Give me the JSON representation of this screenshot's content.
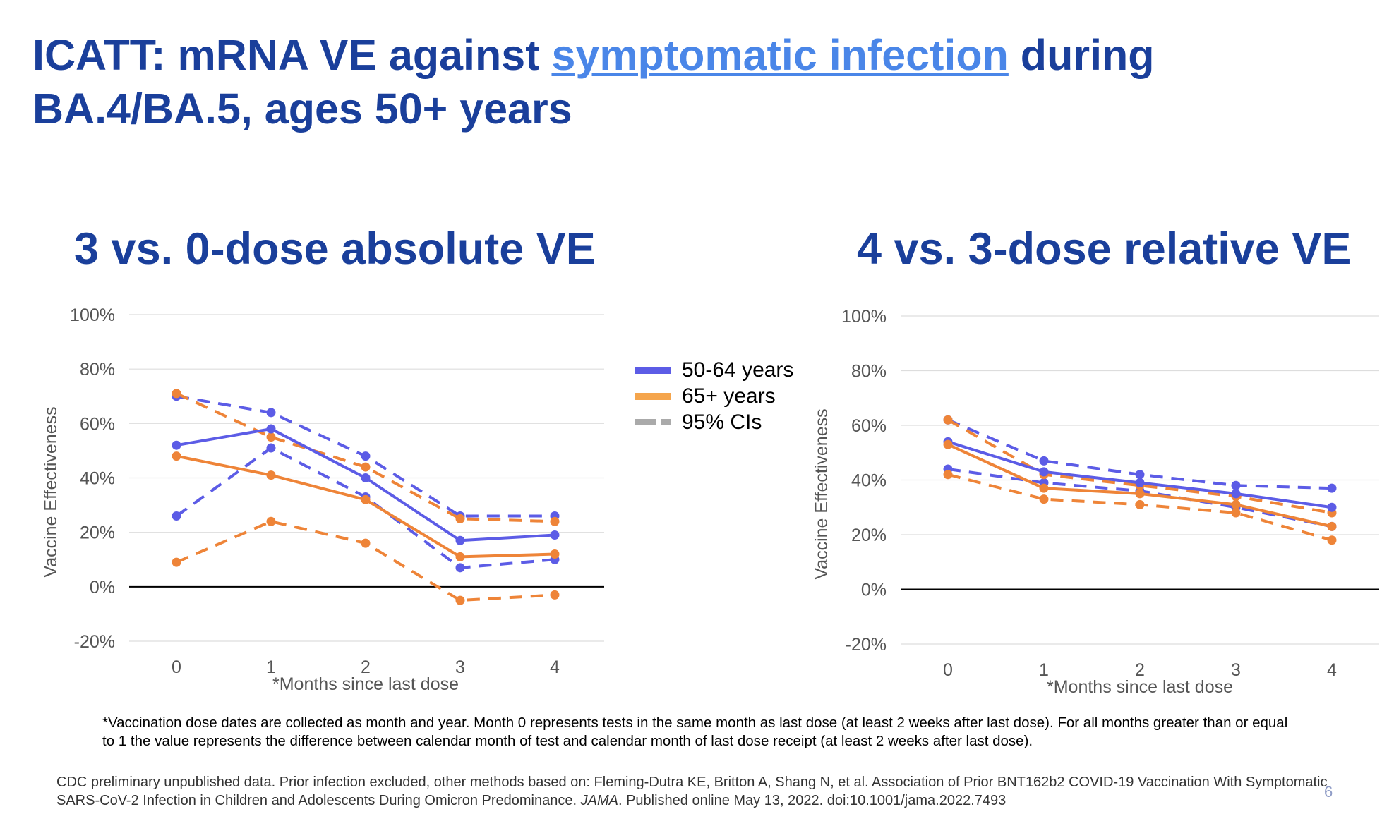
{
  "title": {
    "part1": "ICATT: mRNA VE against ",
    "link": "symptomatic infection",
    "part2": " during BA.4/BA.5, ages 50+ years"
  },
  "legend": {
    "items": [
      {
        "label": "50-64 years",
        "color": "#5c5ce6",
        "style": "solid"
      },
      {
        "label": "65+ years",
        "color": "#f5a54c",
        "style": "solid"
      },
      {
        "label": "95% CIs",
        "color": "#aaaaaa",
        "style": "dashed"
      }
    ]
  },
  "colors": {
    "series_50_64": "#5c5ce6",
    "series_65plus": "#ee8438",
    "title": "#1a3f9b"
  },
  "chart_data": [
    {
      "type": "line",
      "title": "3 vs. 0-dose absolute VE",
      "xlabel": "*Months since last dose",
      "ylabel": "Vaccine Effectiveness",
      "x": [
        0,
        1,
        2,
        3,
        4
      ],
      "yticks": [
        "100%",
        "80%",
        "60%",
        "40%",
        "20%",
        "0%",
        "-20%"
      ],
      "ylim": [
        -20,
        100
      ],
      "series": [
        {
          "name": "50-64 years",
          "values": [
            52,
            58,
            40,
            17,
            19
          ]
        },
        {
          "name": "50-64 years upper 95% CI",
          "values": [
            70,
            64,
            48,
            26,
            26
          ]
        },
        {
          "name": "50-64 years lower 95% CI",
          "values": [
            26,
            51,
            33,
            7,
            10
          ]
        },
        {
          "name": "65+ years",
          "values": [
            48,
            41,
            32,
            11,
            12
          ]
        },
        {
          "name": "65+ years upper 95% CI",
          "values": [
            71,
            55,
            44,
            25,
            24
          ]
        },
        {
          "name": "65+ years lower 95% CI",
          "values": [
            9,
            24,
            16,
            -5,
            -3
          ]
        }
      ]
    },
    {
      "type": "line",
      "title": "4 vs. 3-dose relative VE",
      "xlabel": "*Months since last dose",
      "ylabel": "Vaccine Effectiveness",
      "x": [
        0,
        1,
        2,
        3,
        4
      ],
      "yticks": [
        "100%",
        "80%",
        "60%",
        "40%",
        "20%",
        "0%",
        "-20%"
      ],
      "ylim": [
        -20,
        100
      ],
      "series": [
        {
          "name": "50-64 years",
          "values": [
            54,
            43,
            39,
            35,
            30
          ]
        },
        {
          "name": "50-64 years upper 95% CI",
          "values": [
            62,
            47,
            42,
            38,
            37
          ]
        },
        {
          "name": "50-64 years lower 95% CI",
          "values": [
            44,
            39,
            36,
            30,
            23
          ]
        },
        {
          "name": "65+ years",
          "values": [
            53,
            37,
            35,
            31,
            23
          ]
        },
        {
          "name": "65+ years upper 95% CI",
          "values": [
            62,
            42,
            38,
            34,
            28
          ]
        },
        {
          "name": "65+ years lower 95% CI",
          "values": [
            42,
            33,
            31,
            28,
            18
          ]
        }
      ]
    }
  ],
  "footnote": "*Vaccination dose dates are collected as month and year. Month 0 represents tests in the same month as last dose (at least 2 weeks after last dose).  For all months greater than or equal to 1 the value represents the difference between calendar month of test and calendar month of last dose receipt (at least 2 weeks after last dose).",
  "source": {
    "part1": "CDC preliminary unpublished data. Prior infection excluded, other methods based on: Fleming-Dutra KE, Britton A, Shang N, et al. Association of Prior BNT162b2 COVID-19 Vaccination With Symptomatic SARS-CoV-2 Infection in Children and Adolescents During Omicron Predominance. ",
    "journal": "JAMA",
    "part2": ". Published online May 13, 2022. doi:10.1001/jama.2022.7493"
  },
  "page_number": "6"
}
